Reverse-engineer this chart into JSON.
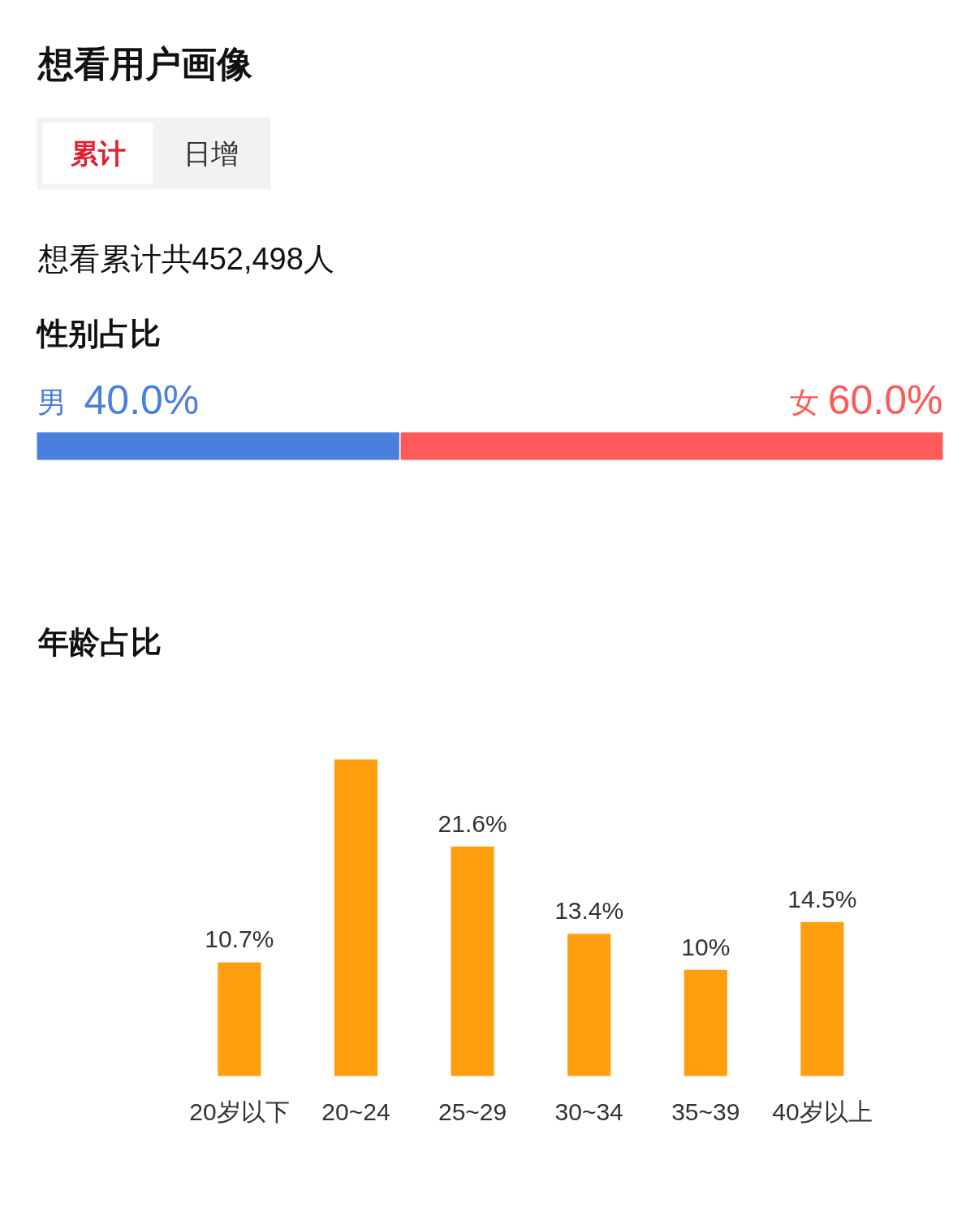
{
  "chart_data": [
    {
      "type": "other",
      "title": "想看用户画像",
      "annotations": [
        "累计",
        "日增",
        "想看累计共452,498人"
      ]
    },
    {
      "type": "bar",
      "title": "性别占比",
      "orientation": "horizontal",
      "stacked": true,
      "categories": [
        null
      ],
      "xlim": [
        0,
        100
      ],
      "tick_labels": false,
      "grid": false,
      "series": [
        {
          "name": "男",
          "color": "#4a7fe0",
          "values": [
            40.0
          ],
          "value_labels": [
            "40.0%"
          ]
        },
        {
          "name": "女",
          "color": "#ff5a5a",
          "values": [
            60.0
          ],
          "value_labels": [
            "60.0%"
          ]
        }
      ]
    },
    {
      "type": "bar",
      "title": "年龄占比",
      "categories": [
        "20岁以下",
        "20~24",
        "25~29",
        "30~34",
        "35~39",
        "40岁以上"
      ],
      "values": [
        10.7,
        29.8,
        21.6,
        13.4,
        10,
        14.5
      ],
      "color": "#ff9f0f",
      "value_labels": [
        "10.7%",
        null,
        "21.6%",
        "13.4%",
        "10%",
        "14.5%"
      ],
      "grid": false
    }
  ]
}
